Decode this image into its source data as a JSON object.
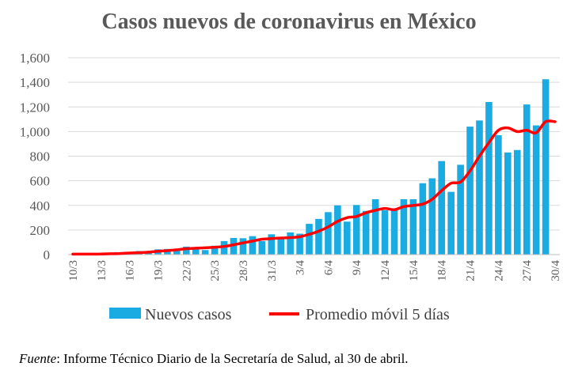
{
  "chart_data": {
    "type": "bar",
    "title": "Casos nuevos de coronavirus en México",
    "ylim": [
      0,
      1600
    ],
    "yticks": [
      "0",
      "200",
      "400",
      "600",
      "800",
      "1,000",
      "1,200",
      "1,400",
      "1,600"
    ],
    "grid": true,
    "legend_position": "bottom",
    "categories": [
      "10/3",
      "11/3",
      "12/3",
      "13/3",
      "14/3",
      "15/3",
      "16/3",
      "17/3",
      "18/3",
      "19/3",
      "20/3",
      "21/3",
      "22/3",
      "23/3",
      "24/3",
      "25/3",
      "26/3",
      "27/3",
      "28/3",
      "29/3",
      "30/3",
      "31/3",
      "1/4",
      "2/4",
      "3/4",
      "4/4",
      "5/4",
      "6/4",
      "7/4",
      "8/4",
      "9/4",
      "10/4",
      "11/4",
      "12/4",
      "13/4",
      "14/4",
      "15/4",
      "16/4",
      "17/4",
      "18/4",
      "19/4",
      "20/4",
      "21/4",
      "22/4",
      "23/4",
      "24/4",
      "25/4",
      "26/4",
      "27/4",
      "28/4",
      "29/4",
      "30/4"
    ],
    "x_tick_labels": [
      "10/3",
      "13/3",
      "16/3",
      "19/3",
      "22/3",
      "25/3",
      "28/3",
      "31/3",
      "3/4",
      "6/4",
      "9/4",
      "12/4",
      "15/4",
      "18/4",
      "21/4",
      "24/4",
      "27/4",
      "30/4"
    ],
    "series": [
      {
        "name": "Nuevos casos",
        "type": "bar",
        "color": "#1aabe2",
        "values": [
          4,
          4,
          4,
          3,
          14,
          15,
          12,
          29,
          25,
          43,
          46,
          48,
          65,
          51,
          37,
          72,
          110,
          135,
          133,
          150,
          110,
          165,
          143,
          180,
          170,
          250,
          290,
          345,
          400,
          268,
          403,
          355,
          450,
          360,
          375,
          450,
          450,
          580,
          620,
          760,
          510,
          730,
          1040,
          1090,
          1240,
          970,
          830,
          850,
          1220,
          1050,
          1425,
          0
        ]
      },
      {
        "name": "Promedio móvil 5 días",
        "type": "line",
        "color": "#ff0000",
        "values": [
          4,
          4,
          4,
          5,
          7,
          9,
          13,
          16,
          20,
          27,
          32,
          39,
          48,
          52,
          55,
          60,
          66,
          80,
          95,
          110,
          125,
          130,
          135,
          138,
          145,
          165,
          190,
          225,
          270,
          300,
          310,
          340,
          360,
          375,
          365,
          390,
          400,
          410,
          450,
          520,
          580,
          590,
          680,
          800,
          910,
          1010,
          1030,
          1000,
          1010,
          990,
          1080,
          1080
        ]
      }
    ]
  },
  "source": {
    "label": "Fuente",
    "text": ": Informe Técnico Diario de la Secretaría de Salud, al 30 de abril."
  }
}
